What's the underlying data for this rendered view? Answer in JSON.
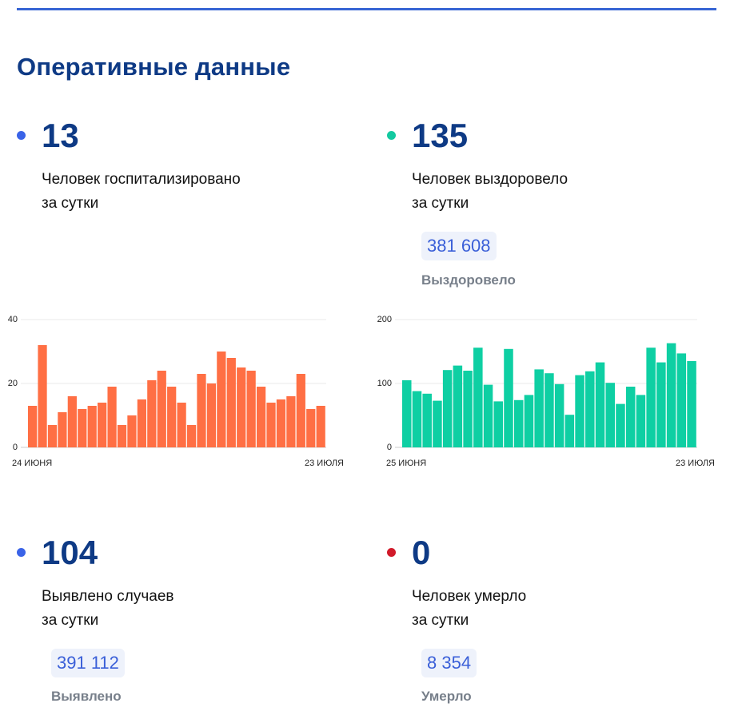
{
  "header": {
    "title": "Оперативные данные"
  },
  "colors": {
    "accent": "#3765d4",
    "title": "#0e3a85",
    "hospital_bars": "#ff6f44",
    "recovered_bars": "#0ecfa3",
    "dot_blue": "#3a63e8",
    "dot_green": "#13c9a0",
    "dot_red": "#d11a2a"
  },
  "stats": {
    "hospitalized": {
      "value": "13",
      "line1": "Человек госпитализировано",
      "line2": "за сутки"
    },
    "recovered": {
      "value": "135",
      "line1": "Человек выздоровело",
      "line2": "за сутки",
      "total": "381 608",
      "total_label": "Выздоровело"
    },
    "cases": {
      "value": "104",
      "line1": "Выявлено случаев",
      "line2": "за сутки",
      "total": "391 112",
      "total_label": "Выявлено"
    },
    "deaths": {
      "value": "0",
      "line1": "Человек умерло",
      "line2": "за сутки",
      "total": "8 354",
      "total_label": "Умерло"
    }
  },
  "chart_data": [
    {
      "type": "bar",
      "x_start_label": "24 ИЮНЯ",
      "x_end_label": "23 ИЮЛЯ",
      "ylim": [
        0,
        40
      ],
      "yticks": [
        "0",
        "20",
        "40"
      ],
      "grid": true,
      "values": [
        13,
        32,
        7,
        11,
        16,
        12,
        13,
        14,
        19,
        7,
        10,
        15,
        21,
        24,
        19,
        14,
        7,
        23,
        20,
        30,
        28,
        25,
        24,
        19,
        14,
        15,
        16,
        23,
        12,
        13
      ]
    },
    {
      "type": "bar",
      "x_start_label": "25 ИЮНЯ",
      "x_end_label": "23 ИЮЛЯ",
      "ylim": [
        0,
        200
      ],
      "yticks": [
        "0",
        "100",
        "200"
      ],
      "grid": true,
      "values": [
        105,
        88,
        84,
        73,
        121,
        128,
        120,
        156,
        98,
        72,
        154,
        74,
        82,
        122,
        116,
        99,
        51,
        113,
        119,
        133,
        101,
        68,
        95,
        82,
        156,
        133,
        163,
        147,
        135
      ]
    }
  ]
}
